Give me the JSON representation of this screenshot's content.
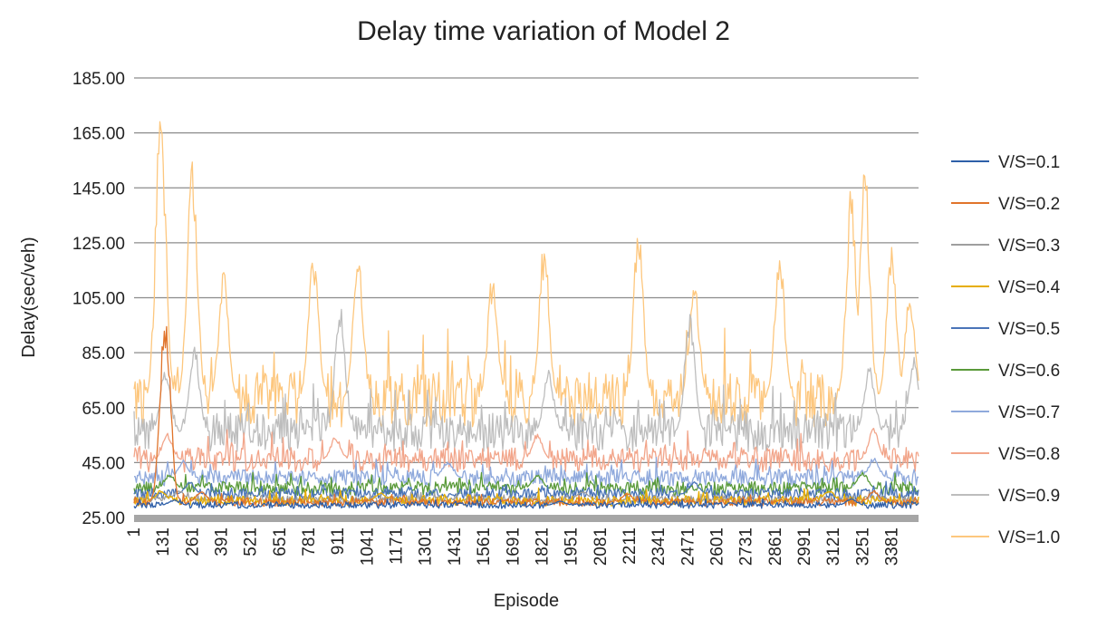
{
  "chart_data": {
    "type": "line",
    "title": "Delay time variation of Model 2",
    "xlabel": "Episode",
    "ylabel": "Delay(sec/veh)",
    "ylim": [
      25,
      185
    ],
    "yticks": [
      "185.00",
      "165.00",
      "145.00",
      "125.00",
      "105.00",
      "85.00",
      "65.00",
      "45.00",
      "25.00"
    ],
    "xlim": [
      1,
      3500
    ],
    "xticks": [
      "1",
      "131",
      "261",
      "391",
      "521",
      "651",
      "781",
      "911",
      "1041",
      "1171",
      "1301",
      "1431",
      "1561",
      "1691",
      "1821",
      "1951",
      "2081",
      "2211",
      "2341",
      "2471",
      "2601",
      "2731",
      "2861",
      "2991",
      "3121",
      "3251",
      "3381"
    ],
    "grid": "horizontal",
    "legend": "right",
    "series": [
      {
        "name": "V/S=0.1",
        "color": "#2e5fa8",
        "base": 29.5,
        "amp": 1.2,
        "spike": 1.5,
        "peaks": [
          [
            180,
            31.5
          ],
          [
            1900,
            31
          ],
          [
            3200,
            32
          ]
        ]
      },
      {
        "name": "V/S=0.2",
        "color": "#e0742b",
        "base": 30.5,
        "amp": 1.4,
        "spike": 2.0,
        "peaks": [
          [
            140,
            105
          ],
          [
            300,
            35
          ],
          [
            2200,
            34
          ],
          [
            3300,
            35
          ]
        ]
      },
      {
        "name": "V/S=0.3",
        "color": "#9e9e9e",
        "base": 31.5,
        "amp": 1.4,
        "spike": 2.0,
        "peaks": [
          [
            200,
            35
          ],
          [
            2000,
            35
          ]
        ]
      },
      {
        "name": "V/S=0.4",
        "color": "#e6ad00",
        "base": 31.0,
        "amp": 1.8,
        "spike": 3.0,
        "peaks": [
          [
            120,
            35
          ],
          [
            1100,
            34
          ],
          [
            3100,
            35
          ]
        ]
      },
      {
        "name": "V/S=0.5",
        "color": "#4a74b8",
        "base": 33.5,
        "amp": 2.0,
        "spike": 3.0,
        "peaks": [
          [
            250,
            38
          ],
          [
            2500,
            38
          ]
        ]
      },
      {
        "name": "V/S=0.6",
        "color": "#5a9a3a",
        "base": 35.5,
        "amp": 2.5,
        "spike": 4.0,
        "peaks": [
          [
            160,
            41
          ],
          [
            1800,
            41
          ],
          [
            3250,
            42
          ]
        ]
      },
      {
        "name": "V/S=0.7",
        "color": "#8fa9dc",
        "base": 39.5,
        "amp": 3.0,
        "spike": 5.0,
        "peaks": [
          [
            220,
            46
          ],
          [
            1400,
            46
          ],
          [
            3300,
            47
          ]
        ]
      },
      {
        "name": "V/S=0.8",
        "color": "#f2a58a",
        "base": 46.0,
        "amp": 4.5,
        "spike": 7.0,
        "peaks": [
          [
            150,
            56
          ],
          [
            900,
            55
          ],
          [
            1800,
            56
          ],
          [
            3300,
            58
          ]
        ]
      },
      {
        "name": "V/S=0.9",
        "color": "#bdbdbd",
        "base": 56.0,
        "amp": 7.0,
        "spike": 14.0,
        "peaks": [
          [
            140,
            80
          ],
          [
            270,
            88
          ],
          [
            920,
            105
          ],
          [
            1850,
            80
          ],
          [
            2480,
            102
          ],
          [
            3280,
            82
          ],
          [
            3480,
            85
          ]
        ]
      },
      {
        "name": "V/S=1.0",
        "color": "#fdc77e",
        "base": 68.0,
        "amp": 10.0,
        "spike": 22.0,
        "peaks": [
          [
            120,
            181
          ],
          [
            260,
            162
          ],
          [
            400,
            115
          ],
          [
            800,
            125
          ],
          [
            1000,
            122
          ],
          [
            1600,
            115
          ],
          [
            1830,
            126
          ],
          [
            2250,
            131
          ],
          [
            2500,
            112
          ],
          [
            2880,
            124
          ],
          [
            3200,
            148
          ],
          [
            3260,
            155
          ],
          [
            3380,
            124
          ],
          [
            3460,
            106
          ]
        ]
      }
    ]
  }
}
